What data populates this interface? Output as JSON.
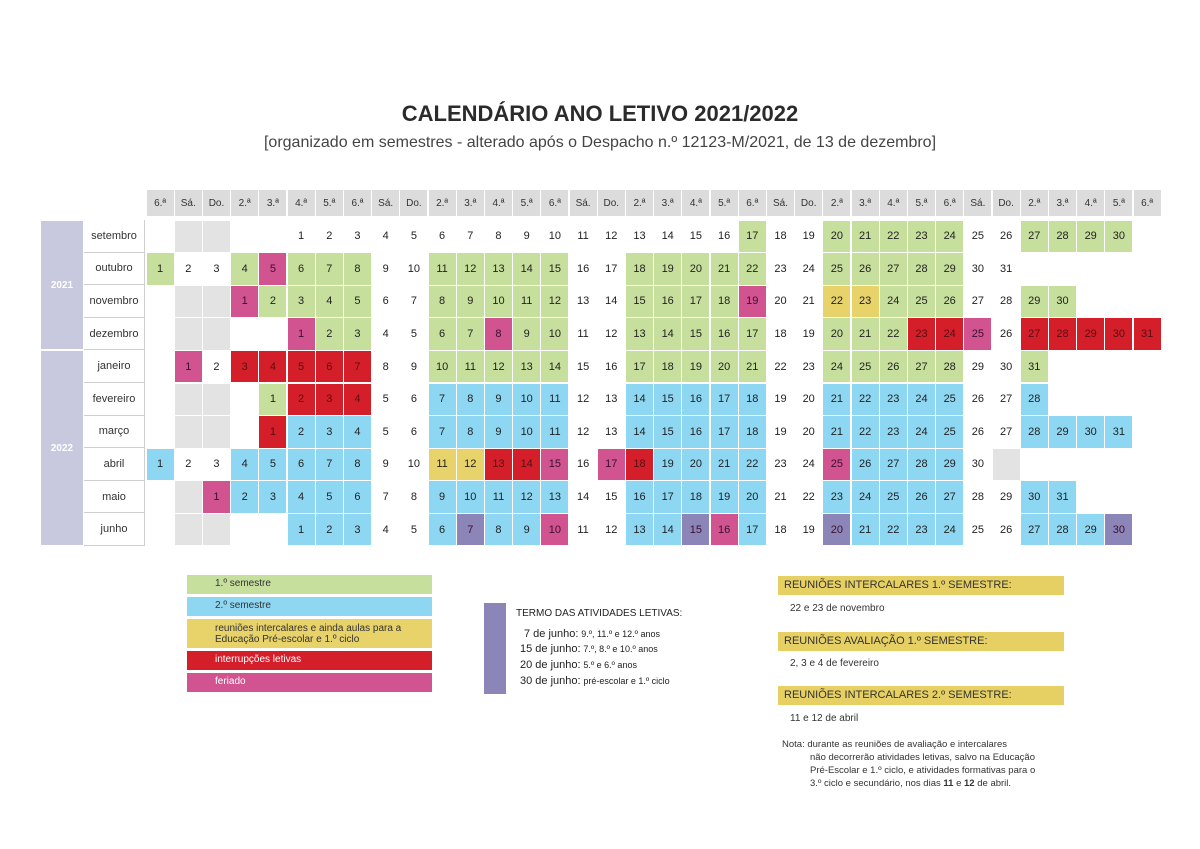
{
  "title": "CALENDÁRIO ANO LETIVO 2021/2022",
  "subtitle": "[organizado em semestres - alterado após o Despacho n.º 12123-M/2021, de 13 de dezembro]",
  "weekdays": [
    "6.ª",
    "Sá.",
    "Do.",
    "2.ª",
    "3.ª",
    "4.ª",
    "5.ª",
    "6.ª",
    "Sá.",
    "Do.",
    "2.ª",
    "3.ª",
    "4.ª",
    "5.ª",
    "6.ª",
    "Sá.",
    "Do.",
    "2.ª",
    "3.ª",
    "4.ª",
    "5.ª",
    "6.ª",
    "Sá.",
    "Do.",
    "2.ª",
    "3.ª",
    "4.ª",
    "5.ª",
    "6.ª",
    "Sá.",
    "Do.",
    "2.ª",
    "3.ª",
    "4.ª",
    "5.ª",
    "6.ª"
  ],
  "years": [
    {
      "label": "2021",
      "rows": 4
    },
    {
      "label": "2022",
      "rows": 6
    }
  ],
  "colors": {
    "s1": "#c7df9d",
    "s2": "#8ed7f2",
    "ri": "#e8d26a",
    "int": "#d41f2a",
    "fer": "#d1538f",
    "ter": "#8c86b8",
    "we": "#e3e3e3",
    "plain": "#ffffff"
  },
  "months": [
    {
      "name": "setembro",
      "start": 5,
      "days": 30,
      "marks": {
        "s1": [
          17,
          20,
          21,
          22,
          23,
          24,
          27,
          28,
          29,
          30
        ]
      }
    },
    {
      "name": "outubro",
      "start": 0,
      "days": 31,
      "marks": {
        "s1": [
          1,
          4,
          6,
          7,
          8,
          11,
          12,
          13,
          14,
          15,
          18,
          19,
          20,
          21,
          22,
          25,
          26,
          27,
          28,
          29
        ],
        "fer": [
          5
        ]
      }
    },
    {
      "name": "novembro",
      "start": 3,
      "days": 30,
      "marks": {
        "s1": [
          2,
          3,
          4,
          5,
          8,
          9,
          10,
          11,
          12,
          15,
          16,
          17,
          18,
          24,
          25,
          26,
          29,
          30
        ],
        "fer": [
          1,
          19
        ],
        "ri": [
          22,
          23
        ]
      }
    },
    {
      "name": "dezembro",
      "start": 5,
      "days": 31,
      "marks": {
        "s1": [
          2,
          3,
          6,
          7,
          9,
          10,
          13,
          14,
          15,
          16,
          17,
          20,
          21,
          22
        ],
        "fer": [
          1,
          8,
          25
        ],
        "int": [
          23,
          24,
          27,
          28,
          29,
          30,
          31
        ]
      }
    },
    {
      "name": "janeiro",
      "start": 1,
      "days": 31,
      "marks": {
        "s1": [
          10,
          11,
          12,
          13,
          14,
          17,
          18,
          19,
          20,
          21,
          24,
          25,
          26,
          27,
          28,
          31
        ],
        "fer": [
          1
        ],
        "int": [
          3,
          4,
          5,
          6,
          7
        ]
      }
    },
    {
      "name": "fevereiro",
      "start": 4,
      "days": 28,
      "marks": {
        "s1": [
          1
        ],
        "int": [
          2,
          3,
          4
        ],
        "s2": [
          7,
          8,
          9,
          10,
          11,
          14,
          15,
          16,
          17,
          18,
          21,
          22,
          23,
          24,
          25,
          28
        ]
      }
    },
    {
      "name": "março",
      "start": 4,
      "days": 31,
      "marks": {
        "int": [
          1
        ],
        "s2": [
          2,
          3,
          4,
          7,
          8,
          9,
          10,
          11,
          14,
          15,
          16,
          17,
          18,
          21,
          22,
          23,
          24,
          25,
          28,
          29,
          30,
          31
        ]
      }
    },
    {
      "name": "abril",
      "start": 0,
      "days": 30,
      "marks": {
        "s2": [
          1,
          4,
          5,
          6,
          7,
          8,
          19,
          20,
          21,
          22,
          26,
          27,
          28,
          29
        ],
        "ri": [
          11,
          12
        ],
        "int": [
          13,
          14,
          18
        ],
        "fer": [
          15,
          17,
          25
        ]
      }
    },
    {
      "name": "maio",
      "start": 2,
      "days": 31,
      "marks": {
        "fer": [
          1
        ],
        "s2": [
          2,
          3,
          4,
          5,
          6,
          9,
          10,
          11,
          12,
          13,
          16,
          17,
          18,
          19,
          20,
          23,
          24,
          25,
          26,
          27,
          30,
          31
        ]
      }
    },
    {
      "name": "junho",
      "start": 5,
      "days": 30,
      "marks": {
        "s2": [
          1,
          2,
          3,
          6,
          8,
          9,
          13,
          14,
          17,
          21,
          22,
          23,
          24,
          27,
          28,
          29
        ],
        "ter": [
          7,
          15,
          20,
          30
        ],
        "fer": [
          10,
          16
        ]
      }
    }
  ],
  "legend": [
    {
      "key": "s1",
      "label": "1.º semestre"
    },
    {
      "key": "s2",
      "label": "2.º semestre"
    },
    {
      "key": "ri",
      "label": "reuniões intercalares  e ainda aulas para a Educação Pré-escolar e 1.º ciclo"
    },
    {
      "key": "int",
      "label": "interrupções letivas"
    },
    {
      "key": "fer",
      "label": "feriado"
    }
  ],
  "termo": {
    "title": "TERMO DAS ATIVIDADES LETIVAS:",
    "items": [
      {
        "date": "7 de junho:",
        "text": "9.º, 11.º e 12.º anos"
      },
      {
        "date": "15 de junho:",
        "text": "7.º, 8.º e 10.º anos"
      },
      {
        "date": "20 de junho:",
        "text": "5.º e 6.º anos"
      },
      {
        "date": "30 de junho:",
        "text": "pré-escolar e 1.º ciclo"
      }
    ]
  },
  "reunioes": [
    {
      "title": "REUNIÕES INTERCALARES 1.º SEMESTRE:",
      "text": "22 e 23 de novembro"
    },
    {
      "title": "REUNIÕES AVALIAÇÃO 1.º SEMESTRE:",
      "text": "2, 3 e 4 de fevereiro"
    },
    {
      "title": "REUNIÕES INTERCALARES 2.º SEMESTRE:",
      "text": "11 e 12 de abril"
    }
  ],
  "nota": {
    "label": "Nota:",
    "line1": "durante as reuniões de avaliação e intercalares",
    "line2": "não decorrerão atividades letivas, salvo na Educação",
    "line3": "Pré-Escolar e 1.º ciclo, e atividades formativas para o",
    "line4": "3.º ciclo e secundário, nos dias",
    "bold1": "11",
    "and": "e",
    "bold2": "12",
    "end": "de abril."
  }
}
